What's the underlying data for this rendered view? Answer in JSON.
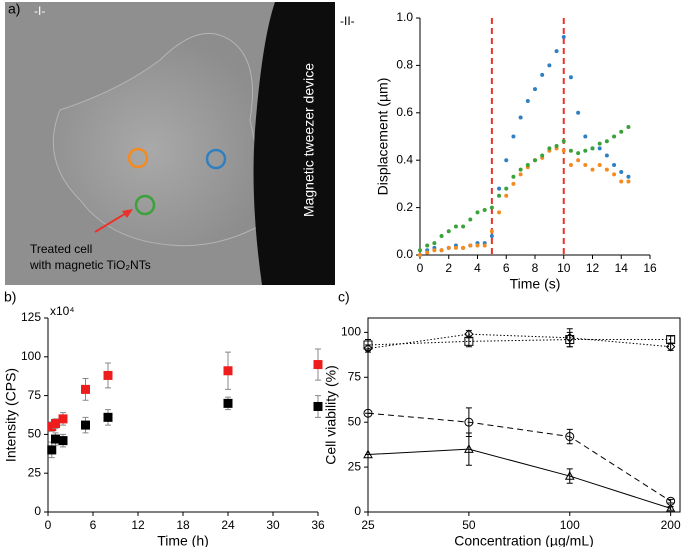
{
  "image": {
    "panel_label": "a)",
    "tag": "-I-",
    "device_label": "Magnetic tweezer device",
    "annotation_line1": "Treated cell",
    "annotation_line2": "with magnetic TiO₂NTs"
  },
  "chart_data": [
    {
      "type": "scatter",
      "panel": "-II-",
      "x_label": "Time (s)",
      "y_label": "Displacement (µm)",
      "xlim": [
        0,
        16
      ],
      "xticks": [
        0,
        2,
        4,
        6,
        8,
        10,
        12,
        14,
        16
      ],
      "ylim": [
        0,
        1
      ],
      "yticks": [
        {
          "value": 0,
          "label": "0.0"
        },
        0.2,
        0.4,
        0.6,
        0.8,
        {
          "value": 1,
          "label": "1.0"
        }
      ],
      "vlines": [
        5,
        10
      ],
      "vline_color": "#e8332a",
      "marker": "circle",
      "series": [
        {
          "color": "#2f7fc1",
          "x": [
            0,
            0.5,
            1,
            1.5,
            2,
            2.5,
            3,
            3.5,
            4,
            4.5,
            5,
            5.5,
            6,
            6.5,
            7,
            7.5,
            8,
            8.5,
            9,
            9.5,
            10,
            10.5,
            11,
            11.5,
            12,
            12.5,
            13,
            13.5,
            14,
            14.5
          ],
          "values": [
            0,
            0.02,
            0.03,
            0.02,
            0.03,
            0.04,
            0.03,
            0.04,
            0.05,
            0.05,
            0.08,
            0.28,
            0.4,
            0.5,
            0.58,
            0.65,
            0.7,
            0.76,
            0.8,
            0.86,
            0.92,
            0.75,
            0.6,
            0.5,
            0.45,
            0.45,
            0.42,
            0.38,
            0.35,
            0.33
          ]
        },
        {
          "color": "#f58a1f",
          "x": [
            0,
            0.5,
            1,
            1.5,
            2,
            2.5,
            3,
            3.5,
            4,
            4.5,
            5,
            5.5,
            6,
            6.5,
            7,
            7.5,
            8,
            8.5,
            9,
            9.5,
            10,
            10.5,
            11,
            11.5,
            12,
            12.5,
            13,
            13.5,
            14,
            14.5
          ],
          "values": [
            0,
            0.01,
            0.02,
            0.02,
            0.03,
            0.03,
            0.03,
            0.04,
            0.04,
            0.04,
            0.1,
            0.18,
            0.25,
            0.3,
            0.34,
            0.37,
            0.4,
            0.41,
            0.44,
            0.45,
            0.44,
            0.38,
            0.4,
            0.38,
            0.36,
            0.38,
            0.36,
            0.34,
            0.31,
            0.31
          ]
        },
        {
          "color": "#3aa23a",
          "x": [
            0,
            0.5,
            1,
            1.5,
            2,
            2.5,
            3,
            3.5,
            4,
            4.5,
            5,
            5.5,
            6,
            6.5,
            7,
            7.5,
            8,
            8.5,
            9,
            9.5,
            10,
            10.5,
            11,
            11.5,
            12,
            12.5,
            13,
            13.5,
            14,
            14.5
          ],
          "values": [
            0.02,
            0.04,
            0.05,
            0.08,
            0.1,
            0.12,
            0.12,
            0.15,
            0.18,
            0.19,
            0.2,
            0.25,
            0.28,
            0.33,
            0.36,
            0.38,
            0.4,
            0.42,
            0.45,
            0.46,
            0.48,
            0.44,
            0.43,
            0.44,
            0.45,
            0.47,
            0.48,
            0.5,
            0.52,
            0.54
          ]
        }
      ]
    },
    {
      "type": "scatter",
      "panel": "b)",
      "x_label": "Time (h)",
      "y_label": "Intensity (CPS)",
      "y_multiplier": "x10⁴",
      "xlim": [
        0,
        36
      ],
      "xticks": [
        0,
        6,
        12,
        18,
        24,
        30,
        36
      ],
      "ylim": [
        0,
        125
      ],
      "yticks": [
        0,
        25,
        50,
        75,
        100,
        125
      ],
      "marker": "square",
      "series": [
        {
          "color": "#ee1c1c",
          "x": [
            0.5,
            1,
            2,
            5,
            8,
            24,
            36
          ],
          "values": [
            55,
            57,
            60,
            79,
            88,
            91,
            95
          ],
          "errors": [
            3,
            3,
            4,
            7,
            8,
            12,
            10
          ]
        },
        {
          "color": "#000000",
          "x": [
            0.5,
            1,
            2,
            5,
            8,
            24,
            36
          ],
          "values": [
            40,
            47,
            46,
            56,
            61,
            70,
            68
          ],
          "errors": [
            5,
            4,
            4,
            5,
            5,
            4,
            7
          ]
        }
      ]
    },
    {
      "type": "line",
      "panel": "c)",
      "x_label": "Concentration (µg/mL)",
      "y_label": "Cell viability (%)",
      "x": [
        25,
        50,
        100,
        200
      ],
      "xlog": true,
      "xlim": [
        25,
        200
      ],
      "xticks": [
        25,
        50,
        100,
        200
      ],
      "ylim": [
        0,
        108
      ],
      "yticks": [
        0,
        25,
        50,
        75,
        100
      ],
      "series": [
        {
          "color": "#000000",
          "marker": "square",
          "dash": "dotted",
          "values": [
            93,
            95,
            96,
            96
          ],
          "errors": [
            3,
            3,
            4,
            2
          ]
        },
        {
          "color": "#000000",
          "marker": "diamond",
          "dash": "dotted",
          "values": [
            91,
            99,
            97,
            92
          ],
          "errors": [
            2,
            2,
            5,
            2
          ]
        },
        {
          "color": "#000000",
          "marker": "circle",
          "dash": "dashed",
          "values": [
            55,
            50,
            42,
            6
          ],
          "errors": [
            0,
            8,
            4,
            1
          ]
        },
        {
          "color": "#000000",
          "marker": "triangle",
          "dash": "solid",
          "values": [
            32,
            35,
            20,
            2
          ],
          "errors": [
            0,
            9,
            4,
            1
          ]
        }
      ]
    }
  ]
}
